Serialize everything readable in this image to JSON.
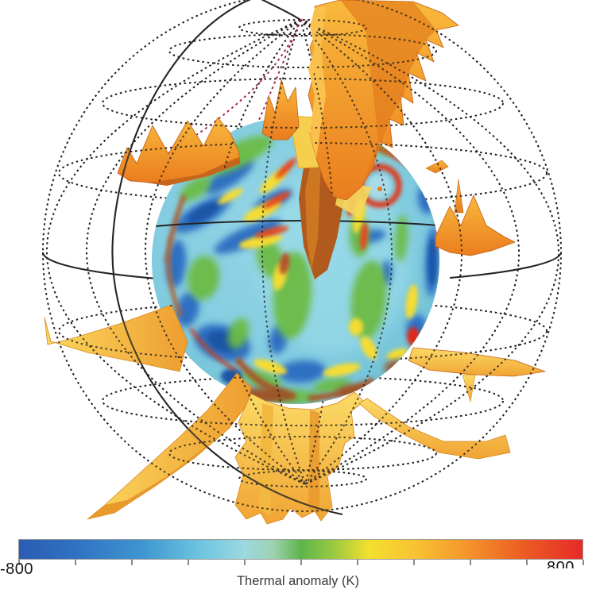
{
  "page": {
    "background": "#ffffff"
  },
  "chart_data": {
    "type": "heatmap",
    "title": "Thermal anomaly (K)",
    "description": "3D spherical visualization: inner sphere colored by thermal anomaly (blue cold to red hot), yellow-orange plume isosurfaces radiating outward, enclosed in a dotted latitude-longitude wireframe globe with a solid equator ellipse and one solid meridian; dark-red dashed meridian segments radiate from the north pole; horizontal rainbow colorbar below.",
    "colorbar": {
      "label": "Thermal anomaly (K)",
      "min": -800,
      "max": 800,
      "min_label": "-800",
      "max_label": "800",
      "tick_values": [
        -800,
        -640,
        -480,
        -320,
        -160,
        0,
        160,
        320,
        480,
        640,
        800
      ],
      "gradient_stops": [
        {
          "pos": 0.0,
          "color": "#2b5cb3"
        },
        {
          "pos": 0.1,
          "color": "#2f72c2"
        },
        {
          "pos": 0.22,
          "color": "#3f96d0"
        },
        {
          "pos": 0.32,
          "color": "#6cc4e0"
        },
        {
          "pos": 0.4,
          "color": "#9cd8e0"
        },
        {
          "pos": 0.45,
          "color": "#9fd2b2"
        },
        {
          "pos": 0.5,
          "color": "#5eb54b"
        },
        {
          "pos": 0.56,
          "color": "#9cca40"
        },
        {
          "pos": 0.62,
          "color": "#f2e02e"
        },
        {
          "pos": 0.7,
          "color": "#f9c332"
        },
        {
          "pos": 0.79,
          "color": "#f4982c"
        },
        {
          "pos": 0.89,
          "color": "#ec5f24"
        },
        {
          "pos": 1.0,
          "color": "#e62a28"
        }
      ]
    },
    "colors": {
      "wireframe": "#1c1c1c",
      "red_dashed_meridian": "#a02342",
      "sphere_base": "#84cde0",
      "cold_anomaly": "#2e6fc2",
      "neutral_green": "#6cbb45",
      "warm_yellow": "#f5dc33",
      "hot_red": "#e0341c",
      "plume_orange": "#ef8d26",
      "plume_yellow": "#fbd45c"
    }
  }
}
